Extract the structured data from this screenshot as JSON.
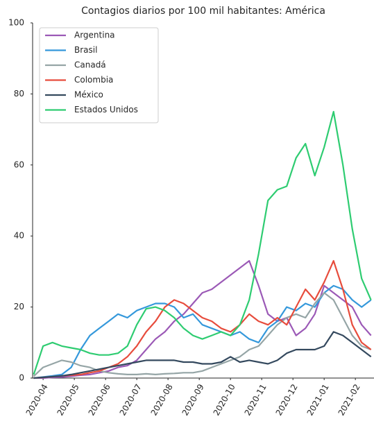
{
  "chart_data": {
    "type": "line",
    "title": "Contagios diarios por 100 mil habitantes: América",
    "x": [
      2020.225,
      2020.25,
      2020.275,
      2020.3,
      2020.325,
      2020.35,
      2020.375,
      2020.4,
      2020.425,
      2020.45,
      2020.475,
      2020.5,
      2020.525,
      2020.55,
      2020.575,
      2020.6,
      2020.625,
      2020.65,
      2020.675,
      2020.7,
      2020.725,
      2020.75,
      2020.775,
      2020.8,
      2020.825,
      2020.85,
      2020.875,
      2020.9,
      2020.925,
      2020.95,
      2020.975,
      2021.0,
      2021.025,
      2021.05,
      2021.075,
      2021.1,
      2021.125
    ],
    "series": [
      {
        "name": "Argentina",
        "color": "#9b59b6",
        "values": [
          0,
          0,
          0.2,
          0.3,
          0.5,
          0.8,
          1,
          1.5,
          2,
          3,
          3.5,
          5,
          8,
          11,
          13,
          16,
          18,
          21,
          24,
          25,
          27,
          29,
          31,
          33,
          26,
          18,
          16,
          17,
          12,
          14,
          18,
          26,
          24,
          22,
          20,
          15,
          12
        ]
      },
      {
        "name": "Brasil",
        "color": "#3498db",
        "values": [
          0,
          0.3,
          0.6,
          1,
          3,
          8,
          12,
          14,
          16,
          18,
          17,
          19,
          20,
          21,
          21,
          20,
          17,
          18,
          15,
          14,
          13,
          12,
          13,
          11,
          10,
          14,
          16,
          20,
          19,
          21,
          20,
          24,
          26,
          25,
          22,
          20,
          22
        ]
      },
      {
        "name": "Canadá",
        "color": "#95a5a6",
        "values": [
          0.5,
          3,
          4,
          5,
          4.5,
          3.5,
          3,
          2,
          1.5,
          1.2,
          1,
          1,
          1.2,
          1,
          1.2,
          1.3,
          1.5,
          1.5,
          2,
          3,
          4,
          5,
          6,
          8,
          9,
          12,
          15,
          17,
          18,
          17,
          21,
          24,
          22,
          17,
          12,
          9,
          8
        ]
      },
      {
        "name": "Colombia",
        "color": "#e74c3c",
        "values": [
          0,
          0.2,
          0.4,
          0.6,
          0.8,
          1,
          1.5,
          2,
          3,
          4,
          6,
          9,
          13,
          16,
          20,
          22,
          21,
          19,
          17,
          16,
          14,
          13,
          15,
          18,
          16,
          15,
          17,
          15,
          20,
          25,
          22,
          27,
          33,
          25,
          15,
          10,
          8
        ]
      },
      {
        "name": "México",
        "color": "#34495e",
        "values": [
          0,
          0.2,
          0.4,
          0.6,
          1,
          1.5,
          2,
          2.5,
          3,
          3.5,
          4,
          4.5,
          5,
          5,
          5,
          5,
          4.5,
          4.5,
          4,
          4,
          4.5,
          6,
          4.5,
          5,
          4.5,
          4,
          5,
          7,
          8,
          8,
          8,
          9,
          13,
          12,
          10,
          8,
          6
        ]
      },
      {
        "name": "Estados Unidos",
        "color": "#2ecc71",
        "values": [
          1,
          9,
          10,
          9,
          8.5,
          8,
          7,
          6.5,
          6.5,
          7,
          9,
          15,
          19.5,
          20,
          19,
          17,
          14,
          12,
          11,
          12,
          13,
          12,
          15,
          22,
          35,
          50,
          53,
          54,
          62,
          66,
          57,
          65,
          75,
          60,
          42,
          28,
          22
        ]
      }
    ],
    "xlim": [
      2020.222,
      2021.133
    ],
    "xticks": [
      {
        "value": 2020.25,
        "label": "2020-04"
      },
      {
        "value": 2020.3333,
        "label": "2020-05"
      },
      {
        "value": 2020.4167,
        "label": "2020-06"
      },
      {
        "value": 2020.5,
        "label": "2020-07"
      },
      {
        "value": 2020.5833,
        "label": "2020-08"
      },
      {
        "value": 2020.6667,
        "label": "2020-09"
      },
      {
        "value": 2020.75,
        "label": "2020-10"
      },
      {
        "value": 2020.8333,
        "label": "2020-11"
      },
      {
        "value": 2020.9167,
        "label": "2020-12"
      },
      {
        "value": 2021.0,
        "label": "2021-01"
      },
      {
        "value": 2021.0833,
        "label": "2021-02"
      }
    ],
    "ylim": [
      0,
      100
    ],
    "yticks": [
      0,
      20,
      40,
      60,
      80,
      100
    ],
    "legend": "upper left"
  }
}
